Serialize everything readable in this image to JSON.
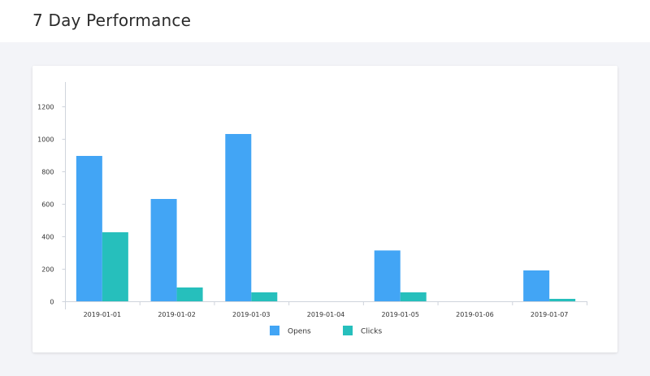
{
  "header": {
    "title": "7 Day Performance"
  },
  "chart_data": {
    "type": "bar",
    "title": "",
    "xlabel": "",
    "ylabel": "",
    "categories": [
      "2019-01-01",
      "2019-01-02",
      "2019-01-03",
      "2019-01-04",
      "2019-01-05",
      "2019-01-06",
      "2019-01-07"
    ],
    "series": [
      {
        "name": "Opens",
        "color": "#42a5f5",
        "values": [
          895,
          630,
          1030,
          0,
          313,
          0,
          190
        ]
      },
      {
        "name": "Clicks",
        "color": "#26bfbc",
        "values": [
          425,
          85,
          55,
          0,
          55,
          0,
          15
        ]
      }
    ],
    "yticks": [
      0,
      200,
      400,
      600,
      800,
      1000,
      1200
    ],
    "ylim": [
      0,
      1350
    ],
    "grid": false,
    "legend_position": "bottom-center"
  }
}
